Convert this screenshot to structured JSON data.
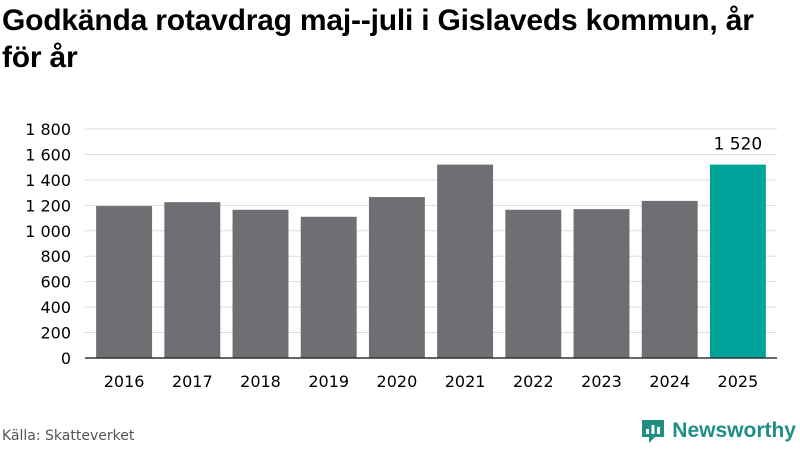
{
  "title": "Godkända rotavdrag maj--juli i Gislaveds kommun, år för år",
  "source": "Källa: Skatteverket",
  "brand": {
    "name": "Newsworthy"
  },
  "colors": {
    "bar": "#6e6e73",
    "highlight": "#00a39a",
    "grid": "#dddddd",
    "axis": "#333333",
    "brand": "#1f8f86"
  },
  "chart_data": {
    "type": "bar",
    "categories": [
      "2016",
      "2017",
      "2018",
      "2019",
      "2020",
      "2021",
      "2022",
      "2023",
      "2024",
      "2025"
    ],
    "values": [
      1195,
      1225,
      1165,
      1110,
      1265,
      1520,
      1165,
      1170,
      1235,
      1520
    ],
    "highlight_index": 9,
    "data_labels": [
      {
        "index": 9,
        "text": "1 520"
      }
    ],
    "ylim": [
      0,
      1800
    ],
    "yticks": [
      0,
      200,
      400,
      600,
      800,
      1000,
      1200,
      1400,
      1600,
      1800
    ],
    "ytick_labels": [
      "0",
      "200",
      "400",
      "600",
      "800",
      "1 000",
      "1 200",
      "1 400",
      "1 600",
      "1 800"
    ],
    "grid": true,
    "xlabel": "",
    "ylabel": ""
  }
}
